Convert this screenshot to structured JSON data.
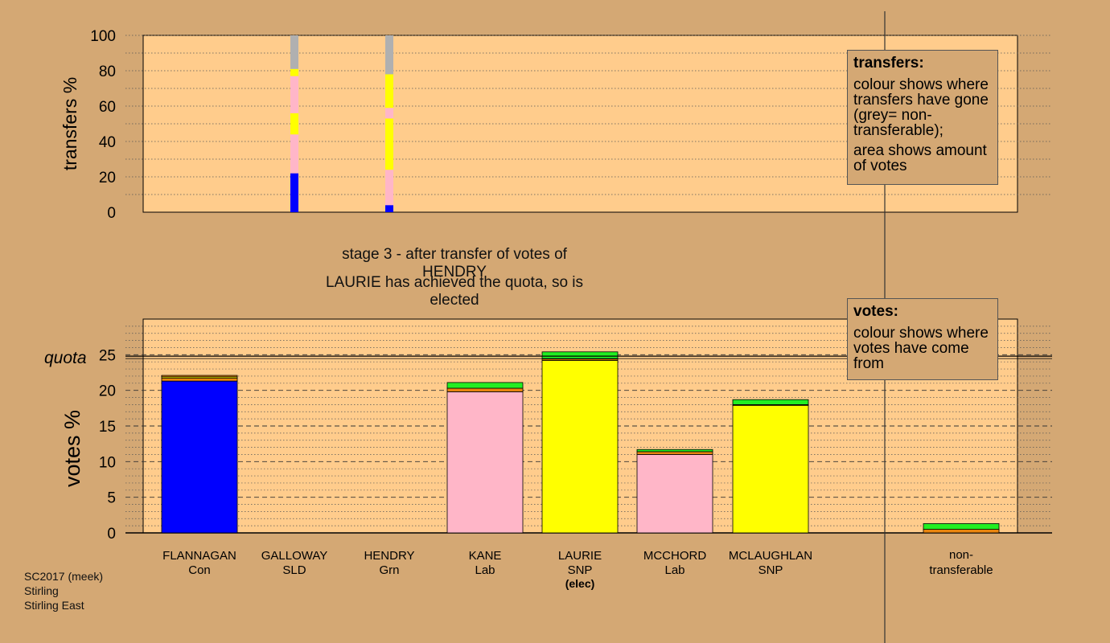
{
  "chart_data": [
    {
      "type": "bar",
      "name": "transfers",
      "ylabel": "transfers %",
      "ylim": [
        0,
        100
      ],
      "yticks": [
        0,
        20,
        40,
        60,
        80,
        100
      ],
      "grid": true,
      "categories": [
        "FLANNAGAN",
        "GALLOWAY",
        "HENDRY",
        "KANE",
        "LAURIE",
        "MCCHORD",
        "MCLAUGHLAN",
        "non-transferable"
      ],
      "stacks": [
        {
          "category": "GALLOWAY",
          "segments": [
            {
              "color": "#0000ff",
              "value": 22
            },
            {
              "color": "#ffb6c8",
              "value": 22
            },
            {
              "color": "#ffff00",
              "value": 12
            },
            {
              "color": "#ffb6c8",
              "value": 21
            },
            {
              "color": "#ffff00",
              "value": 4
            },
            {
              "color": "#b0b0b0",
              "value": 19
            }
          ]
        },
        {
          "category": "HENDRY",
          "segments": [
            {
              "color": "#0000ff",
              "value": 4
            },
            {
              "color": "#ffb6c8",
              "value": 20
            },
            {
              "color": "#ffff00",
              "value": 29
            },
            {
              "color": "#ffb6c8",
              "value": 6
            },
            {
              "color": "#ffff00",
              "value": 19
            },
            {
              "color": "#b0b0b0",
              "value": 22
            }
          ]
        }
      ]
    },
    {
      "type": "bar",
      "name": "votes",
      "ylabel": "votes %",
      "ylim": [
        0,
        30
      ],
      "yticks": [
        0,
        5,
        10,
        15,
        20,
        25
      ],
      "quota": 24.8,
      "quota_label": "quota",
      "grid": true,
      "categories": [
        "FLANNAGAN",
        "GALLOWAY",
        "HENDRY",
        "KANE",
        "LAURIE",
        "MCCHORD",
        "MCLAUGHLAN",
        "non-transferable"
      ],
      "parties": [
        "Con",
        "SLD",
        "Grn",
        "Lab",
        "SNP",
        "Lab",
        "SNP",
        ""
      ],
      "elected_note": [
        "",
        "",
        "",
        "",
        "(elec)",
        "",
        "",
        ""
      ],
      "stacks": [
        {
          "category": "FLANNAGAN",
          "segments": [
            {
              "color": "#0000ff",
              "value": 21.3
            },
            {
              "color": "#e8850f",
              "value": 0.4
            },
            {
              "color": "#ffff00",
              "value": 0.2
            },
            {
              "color": "#e8850f",
              "value": 0.2
            }
          ]
        },
        {
          "category": "GALLOWAY",
          "segments": []
        },
        {
          "category": "HENDRY",
          "segments": []
        },
        {
          "category": "KANE",
          "segments": [
            {
              "color": "#ffb6c8",
              "value": 19.8
            },
            {
              "color": "#e8850f",
              "value": 0.5
            },
            {
              "color": "#22ee22",
              "value": 0.8
            }
          ]
        },
        {
          "category": "LAURIE",
          "segments": [
            {
              "color": "#ffff00",
              "value": 24.2
            },
            {
              "color": "#e8850f",
              "value": 0.2
            },
            {
              "color": "#22ee22",
              "value": 1.0
            }
          ]
        },
        {
          "category": "MCCHORD",
          "segments": [
            {
              "color": "#ffb6c8",
              "value": 11.0
            },
            {
              "color": "#e8850f",
              "value": 0.4
            },
            {
              "color": "#22ee22",
              "value": 0.3
            }
          ]
        },
        {
          "category": "MCLAUGHLAN",
          "segments": [
            {
              "color": "#ffff00",
              "value": 17.9
            },
            {
              "color": "#e8850f",
              "value": 0.1
            },
            {
              "color": "#22ee22",
              "value": 0.7
            }
          ]
        },
        {
          "category": "non-transferable",
          "segments": [
            {
              "color": "#e8850f",
              "value": 0.5
            },
            {
              "color": "#22ee22",
              "value": 0.8
            }
          ]
        }
      ]
    }
  ],
  "captions": {
    "stage": "stage 3 - after transfer of votes of HENDRY",
    "elected": "LAURIE has achieved the quota, so is elected"
  },
  "legend_transfers": {
    "title": "transfers:",
    "line1": "colour shows where transfers have gone (grey= non-transferable);",
    "line2": "area shows amount of votes"
  },
  "legend_votes": {
    "title": "votes:",
    "line1": "colour shows where votes have come from"
  },
  "footer": {
    "line1": "SC2017 (meek)",
    "line2": "Stirling",
    "line3": "Stirling East"
  },
  "colors": {
    "background": "#d4a874",
    "plot_background": "#ffcc8c",
    "Con": "#0000ff",
    "Lab": "#ffb6c8",
    "SNP": "#ffff00",
    "Grn": "#22ee22",
    "SLD": "#e8850f",
    "non_transferable": "#b0b0b0"
  }
}
